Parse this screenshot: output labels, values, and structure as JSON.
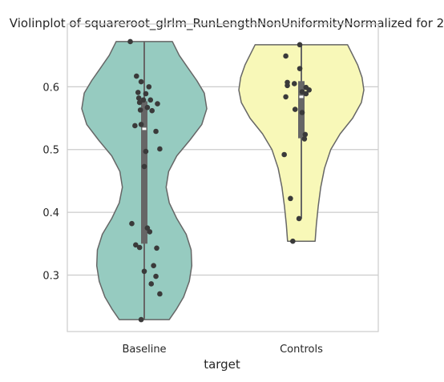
{
  "chart_data": {
    "type": "violin",
    "title": "Violinplot of squareroot_glrlm_RunLengthNonUniformityNormalized for 2",
    "xlabel": "target",
    "ylabel": "",
    "categories": [
      "Baseline",
      "Controls"
    ],
    "ylim": [
      0.21,
      0.7
    ],
    "yticks": [
      0.3,
      0.4,
      0.5,
      0.6
    ],
    "ytick_labels": [
      "0.3",
      "0.4",
      "0.5",
      "0.6"
    ],
    "grid": true,
    "colors": {
      "Baseline": "#96cbc0",
      "Controls": "#f8f8b8",
      "outline": "#666666",
      "points": "#3a3a3a",
      "box": "#666666",
      "median": "#ffffff",
      "grid": "#cccccc",
      "frame": "#cccccc"
    },
    "series": [
      {
        "category": "Baseline",
        "min": 0.229,
        "max": 0.672,
        "q1": 0.35,
        "median": 0.533,
        "q3": 0.577,
        "whisker_low": 0.229,
        "whisker_high": 0.672,
        "points": [
          {
            "jitter": -0.18,
            "y": 0.672
          },
          {
            "jitter": -0.1,
            "y": 0.617
          },
          {
            "jitter": -0.04,
            "y": 0.608
          },
          {
            "jitter": 0.06,
            "y": 0.6
          },
          {
            "jitter": -0.08,
            "y": 0.591
          },
          {
            "jitter": 0.02,
            "y": 0.589
          },
          {
            "jitter": -0.07,
            "y": 0.582
          },
          {
            "jitter": -0.01,
            "y": 0.579
          },
          {
            "jitter": 0.08,
            "y": 0.579
          },
          {
            "jitter": -0.06,
            "y": 0.575
          },
          {
            "jitter": 0.17,
            "y": 0.573
          },
          {
            "jitter": 0.04,
            "y": 0.567
          },
          {
            "jitter": -0.05,
            "y": 0.563
          },
          {
            "jitter": 0.1,
            "y": 0.562
          },
          {
            "jitter": -0.04,
            "y": 0.54
          },
          {
            "jitter": -0.12,
            "y": 0.538
          },
          {
            "jitter": 0.15,
            "y": 0.529
          },
          {
            "jitter": 0.2,
            "y": 0.501
          },
          {
            "jitter": 0.02,
            "y": 0.497
          },
          {
            "jitter": 0.0,
            "y": 0.473
          },
          {
            "jitter": -0.16,
            "y": 0.382
          },
          {
            "jitter": 0.04,
            "y": 0.375
          },
          {
            "jitter": 0.07,
            "y": 0.369
          },
          {
            "jitter": -0.11,
            "y": 0.348
          },
          {
            "jitter": -0.06,
            "y": 0.344
          },
          {
            "jitter": 0.16,
            "y": 0.343
          },
          {
            "jitter": 0.12,
            "y": 0.315
          },
          {
            "jitter": 0.0,
            "y": 0.306
          },
          {
            "jitter": 0.15,
            "y": 0.298
          },
          {
            "jitter": 0.09,
            "y": 0.286
          },
          {
            "jitter": 0.2,
            "y": 0.27
          },
          {
            "jitter": -0.04,
            "y": 0.229
          }
        ]
      },
      {
        "category": "Controls",
        "min": 0.354,
        "max": 0.667,
        "q1": 0.518,
        "median": 0.584,
        "q3": 0.609,
        "whisker_low": 0.39,
        "whisker_high": 0.667,
        "points": [
          {
            "jitter": -0.02,
            "y": 0.667
          },
          {
            "jitter": -0.2,
            "y": 0.649
          },
          {
            "jitter": -0.02,
            "y": 0.629
          },
          {
            "jitter": -0.18,
            "y": 0.607
          },
          {
            "jitter": -0.09,
            "y": 0.605
          },
          {
            "jitter": -0.18,
            "y": 0.602
          },
          {
            "jitter": 0.06,
            "y": 0.599
          },
          {
            "jitter": 0.1,
            "y": 0.595
          },
          {
            "jitter": 0.01,
            "y": 0.592
          },
          {
            "jitter": 0.06,
            "y": 0.589
          },
          {
            "jitter": -0.2,
            "y": 0.584
          },
          {
            "jitter": -0.08,
            "y": 0.564
          },
          {
            "jitter": 0.01,
            "y": 0.559
          },
          {
            "jitter": 0.05,
            "y": 0.524
          },
          {
            "jitter": 0.04,
            "y": 0.517
          },
          {
            "jitter": -0.22,
            "y": 0.492
          },
          {
            "jitter": -0.14,
            "y": 0.422
          },
          {
            "jitter": -0.03,
            "y": 0.39
          },
          {
            "jitter": -0.11,
            "y": 0.354
          }
        ]
      }
    ],
    "density": [
      {
        "category": "Baseline",
        "profile": [
          [
            0.229,
            0.4
          ],
          [
            0.245,
            0.51
          ],
          [
            0.265,
            0.63
          ],
          [
            0.29,
            0.72
          ],
          [
            0.315,
            0.76
          ],
          [
            0.34,
            0.75
          ],
          [
            0.365,
            0.67
          ],
          [
            0.39,
            0.52
          ],
          [
            0.415,
            0.4
          ],
          [
            0.44,
            0.35
          ],
          [
            0.465,
            0.39
          ],
          [
            0.49,
            0.52
          ],
          [
            0.515,
            0.73
          ],
          [
            0.54,
            0.92
          ],
          [
            0.565,
            1.0
          ],
          [
            0.59,
            0.96
          ],
          [
            0.61,
            0.84
          ],
          [
            0.63,
            0.7
          ],
          [
            0.65,
            0.56
          ],
          [
            0.672,
            0.45
          ]
        ]
      },
      {
        "category": "Controls",
        "profile": [
          [
            0.354,
            0.22
          ],
          [
            0.38,
            0.24
          ],
          [
            0.41,
            0.27
          ],
          [
            0.44,
            0.31
          ],
          [
            0.47,
            0.37
          ],
          [
            0.5,
            0.47
          ],
          [
            0.525,
            0.62
          ],
          [
            0.55,
            0.82
          ],
          [
            0.575,
            0.96
          ],
          [
            0.595,
            1.0
          ],
          [
            0.615,
            0.97
          ],
          [
            0.635,
            0.9
          ],
          [
            0.655,
            0.8
          ],
          [
            0.667,
            0.74
          ]
        ]
      }
    ]
  }
}
